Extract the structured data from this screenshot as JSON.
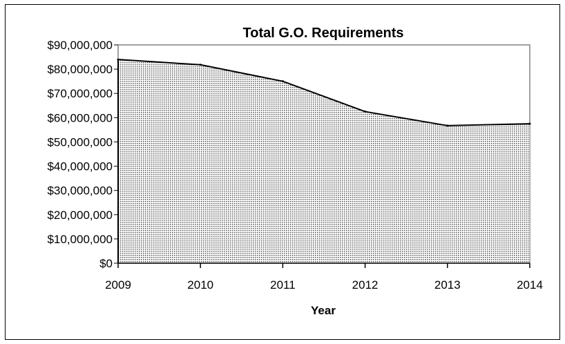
{
  "chart_data": {
    "type": "area",
    "title": "Total G.O. Requirements",
    "xlabel": "Year",
    "ylabel": "",
    "categories": [
      "2009",
      "2010",
      "2011",
      "2012",
      "2013",
      "2014"
    ],
    "values": [
      84000000,
      81800000,
      75000000,
      62500000,
      56700000,
      57500000
    ],
    "ylim": [
      0,
      90000000
    ],
    "yticks": [
      "$0",
      "$10,000,000",
      "$20,000,000",
      "$30,000,000",
      "$40,000,000",
      "$50,000,000",
      "$60,000,000",
      "$70,000,000",
      "$80,000,000",
      "$90,000,000"
    ],
    "grid": false,
    "legend": "none",
    "fill_pattern": "dotted gray",
    "colors": {
      "fill_dot": "#555555",
      "fill_bg": "#ffffff",
      "line": "#000000",
      "plot_border": "#808080"
    }
  }
}
